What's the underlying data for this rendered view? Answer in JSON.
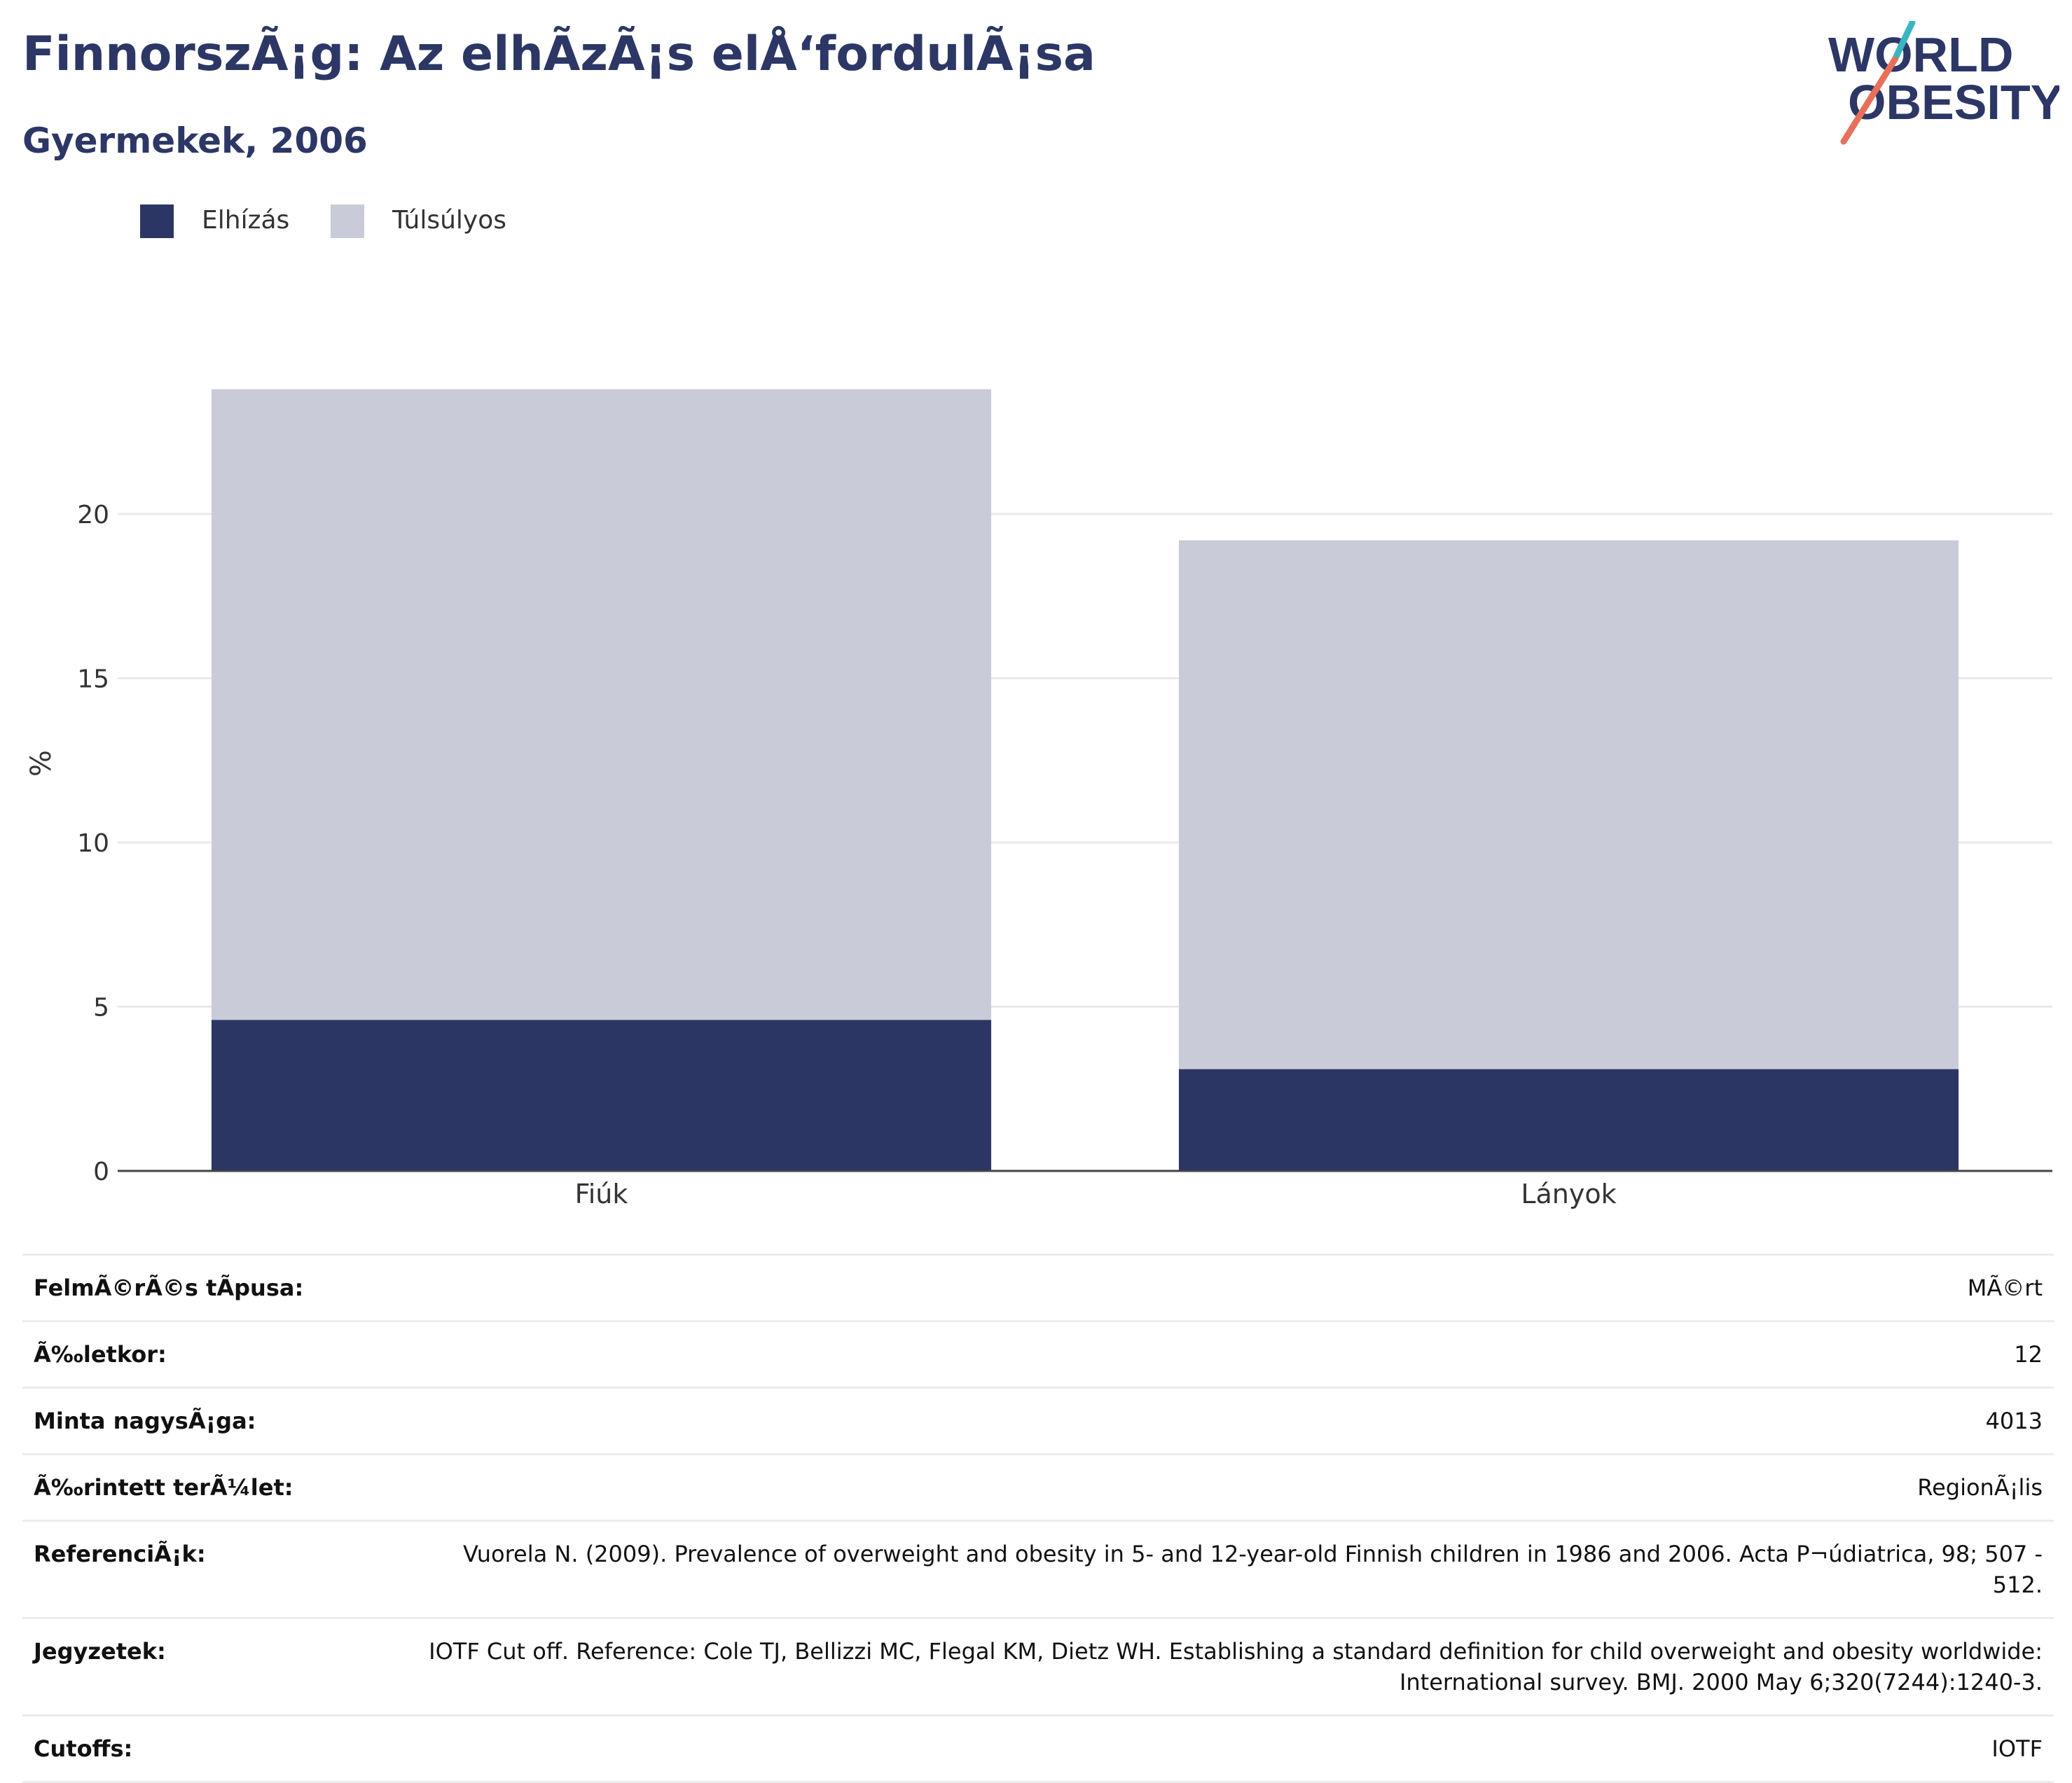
{
  "header": {
    "title": "FinnorszÃ¡g: Az elhÃ­zÃ¡s elÅ‘fordulÃ¡sa",
    "subtitle": "Gyermekek, 2006"
  },
  "logo": {
    "line1": "WORLD",
    "line2": "OBESITY"
  },
  "colors": {
    "obese": "#2b3665",
    "overweight": "#c9ccd8",
    "title": "#2c3766",
    "logo_teal": "#3bb6c0",
    "logo_coral": "#e8705a",
    "grid": "#eaeaea",
    "axis": "#444444"
  },
  "chart_data": {
    "type": "bar",
    "stacked": true,
    "categories": [
      "Fiúk",
      "Lányok"
    ],
    "series": [
      {
        "name": "Elhízás",
        "values": [
          4.6,
          3.1
        ]
      },
      {
        "name": "Túlsúlyos",
        "values": [
          19.2,
          16.1
        ]
      }
    ],
    "ylabel": "%",
    "xlabel": "",
    "ylim": [
      0,
      25
    ],
    "yticks": [
      0,
      5,
      10,
      15,
      20
    ],
    "grid": true,
    "legend": "top-left"
  },
  "info": [
    {
      "key": "FelmÃ©rÃ©s tÃpusa:",
      "value": "MÃ©rt"
    },
    {
      "key": "Ã‰letkor:",
      "value": "12"
    },
    {
      "key": "Minta nagysÃ¡ga:",
      "value": "4013"
    },
    {
      "key": "Ã‰rintett terÃ¼let:",
      "value": "RegionÃ¡lis"
    },
    {
      "key": "ReferenciÃ¡k:",
      "value": "Vuorela N. (2009). Prevalence of overweight and obesity in 5- and 12-year-old Finnish children in 1986 and 2006. Acta P¬údiatrica, 98; 507 - 512."
    },
    {
      "key": "Jegyzetek:",
      "value": "IOTF Cut off. Reference: Cole TJ, Bellizzi MC, Flegal KM, Dietz WH. Establishing a standard definition for child overweight and obesity worldwide: International survey. BMJ. 2000 May 6;320(7244):1240-3."
    },
    {
      "key": "Cutoffs:",
      "value": "IOTF"
    }
  ]
}
